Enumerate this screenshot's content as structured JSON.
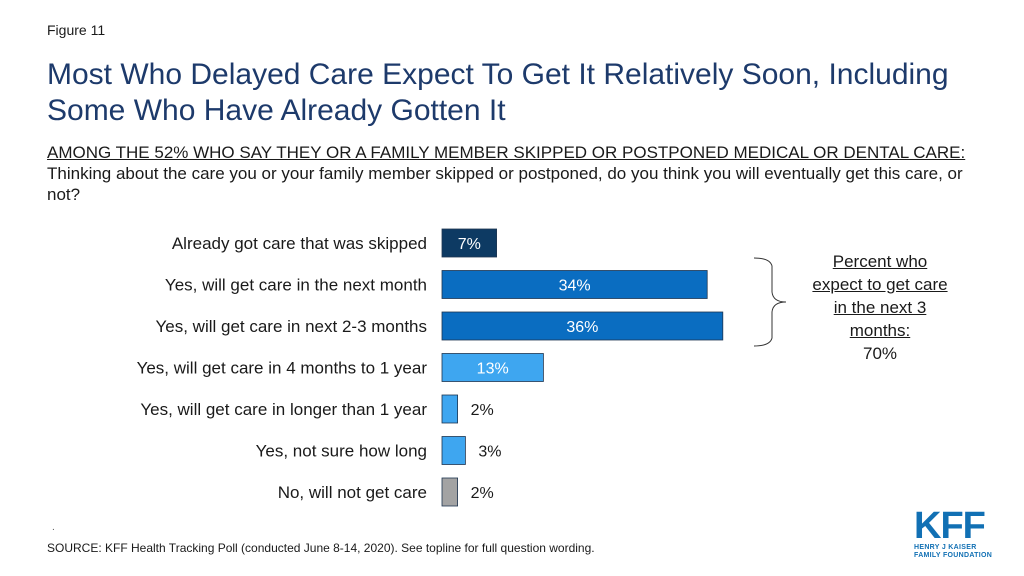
{
  "figure_label": "Figure 11",
  "title": "Most Who Delayed Care Expect To Get It Relatively Soon, Including Some Who Have Already Gotten It",
  "subtitle": {
    "underlined": "AMONG THE 52% WHO SAY THEY OR A FAMILY MEMBER SKIPPED OR POSTPONED MEDICAL OR DENTAL CARE:",
    "question": "Thinking about the care you or your family member skipped or postponed, do you think you will eventually get this care, or not?"
  },
  "callout": {
    "underlined": "Percent who expect to get care in the next 3 months:",
    "value": "70%"
  },
  "source": "SOURCE: KFF Health Tracking Poll (conducted June 8-14, 2020). See topline for full question wording.",
  "source_mark": ".",
  "logo": {
    "text": "KFF",
    "line1": "HENRY J KAISER",
    "line2": "FAMILY FOUNDATION"
  },
  "chart_data": {
    "type": "bar",
    "orientation": "horizontal",
    "categories": [
      "Already got care that was skipped",
      "Yes, will get care in the next month",
      "Yes, will get care in next 2-3 months",
      "Yes, will get care in 4 months to 1 year",
      "Yes, will get care in longer than 1 year",
      "Yes, not sure how long",
      "No, will not get care"
    ],
    "values": [
      7,
      34,
      36,
      13,
      2,
      3,
      2
    ],
    "value_labels": [
      "7%",
      "34%",
      "36%",
      "13%",
      "2%",
      "3%",
      "2%"
    ],
    "colors": [
      "#0d3a63",
      "#0a6dc1",
      "#0a6dc1",
      "#3ea6f0",
      "#3ea6f0",
      "#3ea6f0",
      "#a3a3a3"
    ],
    "label_colors": [
      "#ffffff",
      "#ffffff",
      "#ffffff",
      "#ffffff",
      "#1a1a1a",
      "#1a1a1a",
      "#1a1a1a"
    ],
    "xlim": [
      0,
      100
    ]
  }
}
